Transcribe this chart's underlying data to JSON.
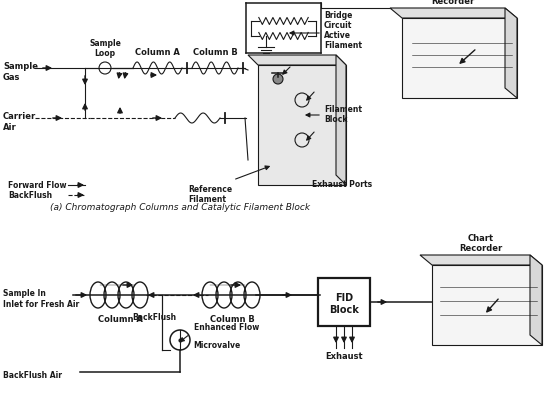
{
  "bg_color": "#ffffff",
  "line_color": "#1a1a1a",
  "caption_a": "(a) Chromatograph Columns and Catalytic Filament Block",
  "labels_top": {
    "sample_gas": "Sample\nGas",
    "carrier_air": "Carrier\nAir",
    "sample_loop": "Sample\nLoop",
    "column_a_top": "Column A",
    "column_b_top": "Column B",
    "bridge_circuit": "Bridge\nCircuit",
    "active_filament": "Active\nFilament",
    "filament_block": "Filament\nBlock",
    "reference_filament": "Reference\nFilament",
    "exhaust_ports": "Exhaust Ports",
    "chart_recorder_top": "Chart\nRecorder",
    "forward_flow": "Forward Flow",
    "backflush_top": "BackFlush"
  },
  "labels_bottom": {
    "sample_in": "Sample In\nInlet for Fresh Air",
    "column_a_bot": "Column A",
    "column_b_bot": "Column B",
    "backflush_bot": "BackFlush",
    "enhanced_flow": "Enhanced Flow",
    "microvalve": "Microvalve",
    "backflush_air": "BackFlush Air",
    "fid_block": "FID\nBlock",
    "exhaust": "Exhaust",
    "chart_recorder_bot": "Chart\nRecorder"
  }
}
